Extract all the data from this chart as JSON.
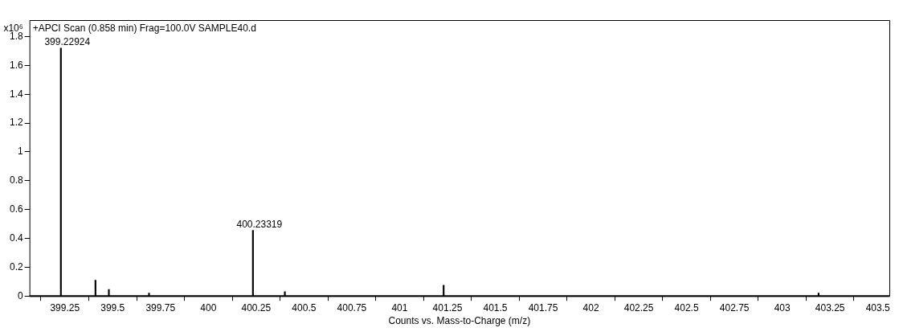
{
  "chart_data": {
    "type": "bar",
    "title": "+APCI Scan (0.858 min) Frag=100.0V SAMPLE40.d",
    "xlabel": "Counts vs. Mass-to-Charge (m/z)",
    "ylabel": "x10⁶",
    "x": [
      399.22924,
      399.41,
      399.48,
      399.69,
      400.05,
      400.23319,
      400.4,
      400.48,
      400.8,
      401.03,
      401.23,
      402.22,
      403.19
    ],
    "values": [
      1.72,
      0.11,
      0.045,
      0.02,
      null,
      0.455,
      0.03,
      null,
      null,
      null,
      0.075,
      null,
      0.02
    ],
    "color": "#000000",
    "annotations": [
      {
        "text": "399.22924",
        "x": 399.22924,
        "y": 1.72
      },
      {
        "text": "400.23319",
        "x": 400.23319,
        "y": 0.455
      }
    ],
    "xlim": [
      399.065,
      403.56
    ],
    "xticks": [
      399.25,
      399.5,
      399.75,
      400,
      400.25,
      400.5,
      400.75,
      401,
      401.25,
      401.5,
      401.75,
      402,
      402.25,
      402.5,
      402.75,
      403,
      403.25,
      403.5
    ],
    "ylim": [
      0,
      1.915
    ],
    "yticks": [
      0,
      0.2,
      0.4,
      0.6,
      0.8,
      1,
      1.2,
      1.4,
      1.6,
      1.8
    ],
    "grid": false,
    "legend": false
  }
}
